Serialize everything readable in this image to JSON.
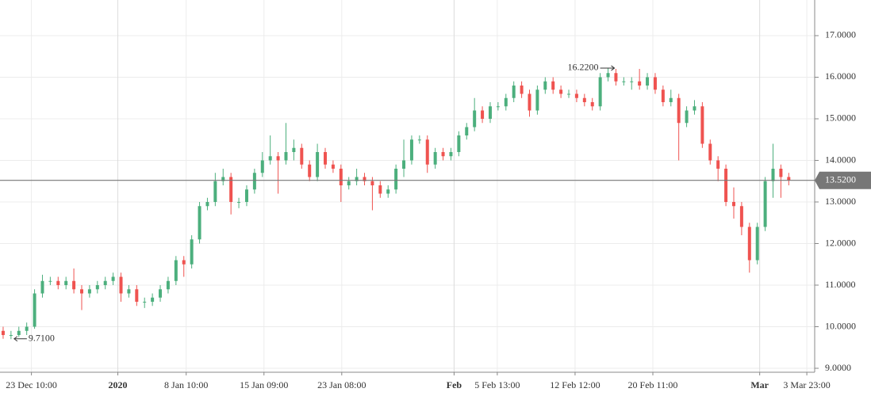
{
  "chart_data": {
    "type": "candlestick",
    "open": [
      9.9,
      9.8,
      9.8,
      9.9,
      10.0,
      10.8,
      11.1,
      11.1,
      11.0,
      11.1,
      10.9,
      10.8,
      10.9,
      11.0,
      11.1,
      11.2,
      10.8,
      10.9,
      10.6,
      10.6,
      10.7,
      10.9,
      11.1,
      11.6,
      11.5,
      12.1,
      12.9,
      13.0,
      13.5,
      13.6,
      13.0,
      13.0,
      13.3,
      13.7,
      14.0,
      14.1,
      14.0,
      14.2,
      14.3,
      13.9,
      13.6,
      14.2,
      13.9,
      13.8,
      13.4,
      13.5,
      13.6,
      13.5,
      13.4,
      13.2,
      13.3,
      13.8,
      14.0,
      14.5,
      14.5,
      13.9,
      14.2,
      14.1,
      14.2,
      14.6,
      14.8,
      15.2,
      15.0,
      15.3,
      15.3,
      15.5,
      15.8,
      15.6,
      15.2,
      15.7,
      15.9,
      15.7,
      15.6,
      15.6,
      15.5,
      15.4,
      15.3,
      16.0,
      16.1,
      15.9,
      15.9,
      15.9,
      15.8,
      16.0,
      15.7,
      15.4,
      15.5,
      14.9,
      15.2,
      15.3,
      14.4,
      14.0,
      13.8,
      13.0,
      12.9,
      12.4,
      11.6,
      12.4,
      13.5,
      13.8,
      13.6
    ],
    "high": [
      10.0,
      9.9,
      10.0,
      10.1,
      10.9,
      11.25,
      11.2,
      11.2,
      11.2,
      11.4,
      11.0,
      11.0,
      11.1,
      11.2,
      11.3,
      11.3,
      11.0,
      11.0,
      10.7,
      10.8,
      11.0,
      11.2,
      11.7,
      11.7,
      12.2,
      13.0,
      13.1,
      13.7,
      13.8,
      13.7,
      13.1,
      13.4,
      13.8,
      14.2,
      14.6,
      14.2,
      14.9,
      14.5,
      14.4,
      14.0,
      14.4,
      14.3,
      14.0,
      13.9,
      13.6,
      13.8,
      13.7,
      13.6,
      13.5,
      13.4,
      13.9,
      14.5,
      14.6,
      14.6,
      14.6,
      14.3,
      14.3,
      14.3,
      14.7,
      14.9,
      15.5,
      15.3,
      15.4,
      15.4,
      15.6,
      15.9,
      15.9,
      15.7,
      15.8,
      16.0,
      16.0,
      15.8,
      15.7,
      15.7,
      15.6,
      15.5,
      16.1,
      16.22,
      16.2,
      16.0,
      16.0,
      16.2,
      16.1,
      16.1,
      15.8,
      15.7,
      15.6,
      15.3,
      15.45,
      15.4,
      14.5,
      14.1,
      13.9,
      13.35,
      13.0,
      12.5,
      12.5,
      13.6,
      14.4,
      13.9,
      13.7
    ],
    "low": [
      9.71,
      9.7,
      9.75,
      9.8,
      9.95,
      10.7,
      11.0,
      10.9,
      10.9,
      10.8,
      10.4,
      10.7,
      10.8,
      10.9,
      11.0,
      10.6,
      10.7,
      10.5,
      10.45,
      10.5,
      10.6,
      10.8,
      11.0,
      11.2,
      11.4,
      12.0,
      12.8,
      12.9,
      13.4,
      12.7,
      12.85,
      12.9,
      13.2,
      13.6,
      13.9,
      13.2,
      13.9,
      14.0,
      13.8,
      13.5,
      13.5,
      13.8,
      13.7,
      13.0,
      13.3,
      13.4,
      13.4,
      12.8,
      13.1,
      13.1,
      13.2,
      13.6,
      13.9,
      14.4,
      13.7,
      13.8,
      14.0,
      14.0,
      14.1,
      14.5,
      14.7,
      14.9,
      14.9,
      15.2,
      15.2,
      15.4,
      15.5,
      15.05,
      15.1,
      15.6,
      15.6,
      15.5,
      15.5,
      15.4,
      15.3,
      15.2,
      15.2,
      15.9,
      15.8,
      15.8,
      15.7,
      15.7,
      15.7,
      15.6,
      15.3,
      15.3,
      14.0,
      14.8,
      15.1,
      14.3,
      13.9,
      13.5,
      12.9,
      12.6,
      12.2,
      11.3,
      11.5,
      12.3,
      13.1,
      13.1,
      13.4
    ],
    "close": [
      9.8,
      9.8,
      9.9,
      10.0,
      10.8,
      11.1,
      11.1,
      11.0,
      11.1,
      10.9,
      10.8,
      10.9,
      11.0,
      11.1,
      11.2,
      10.8,
      10.9,
      10.6,
      10.6,
      10.7,
      10.9,
      11.1,
      11.6,
      11.5,
      12.1,
      12.9,
      13.0,
      13.5,
      13.6,
      13.0,
      13.0,
      13.3,
      13.7,
      14.0,
      14.1,
      14.0,
      14.2,
      14.3,
      13.9,
      13.6,
      14.2,
      13.9,
      13.8,
      13.4,
      13.5,
      13.6,
      13.5,
      13.4,
      13.2,
      13.3,
      13.8,
      14.0,
      14.5,
      14.5,
      13.9,
      14.2,
      14.1,
      14.2,
      14.6,
      14.8,
      15.2,
      15.0,
      15.3,
      15.3,
      15.5,
      15.8,
      15.6,
      15.2,
      15.7,
      15.9,
      15.7,
      15.6,
      15.6,
      15.5,
      15.4,
      15.3,
      16.0,
      16.1,
      15.9,
      15.9,
      15.9,
      15.8,
      16.0,
      15.7,
      15.4,
      15.5,
      14.9,
      15.2,
      15.3,
      14.4,
      14.0,
      13.8,
      13.0,
      12.9,
      12.4,
      11.6,
      12.4,
      13.5,
      13.8,
      13.6,
      13.52
    ],
    "up_color": "#4caf7d",
    "down_color": "#ef5350",
    "xlim": [
      -0.4,
      103.3
    ],
    "xticks": [
      {
        "value": 3.6,
        "label": "23 Dec 10:00"
      },
      {
        "value": 14.6,
        "label": "2020",
        "major": true
      },
      {
        "value": 23.3,
        "label": "8 Jan 10:00"
      },
      {
        "value": 33.2,
        "label": "15 Jan 09:00"
      },
      {
        "value": 43.1,
        "label": "23 Jan 08:00"
      },
      {
        "value": 57.4,
        "label": "Feb",
        "major": true
      },
      {
        "value": 62.9,
        "label": "5 Feb 13:00"
      },
      {
        "value": 72.8,
        "label": "12 Feb 12:00"
      },
      {
        "value": 82.7,
        "label": "20 Feb 11:00"
      },
      {
        "value": 96.3,
        "label": "Mar",
        "major": true
      },
      {
        "value": 102.3,
        "label": "3 Mar 23:00"
      }
    ],
    "ylim": [
      8.905,
      17.857
    ],
    "yticks": [
      {
        "value": 9,
        "label": "9.0000"
      },
      {
        "value": 10,
        "label": "10.0000"
      },
      {
        "value": 11,
        "label": "11.0000"
      },
      {
        "value": 12,
        "label": "12.0000"
      },
      {
        "value": 13,
        "label": "13.0000"
      },
      {
        "value": 14,
        "label": "14.0000"
      },
      {
        "value": 15,
        "label": "15.0000"
      },
      {
        "value": 16,
        "label": "16.0000"
      },
      {
        "value": 17,
        "label": "17.0000"
      }
    ],
    "grid": true,
    "high_marker": {
      "value": 16.22,
      "label": "16.2200"
    },
    "low_marker": {
      "value": 9.71,
      "label": "9.7100"
    },
    "last_price": {
      "value": 13.52,
      "label": "13.5200"
    }
  }
}
